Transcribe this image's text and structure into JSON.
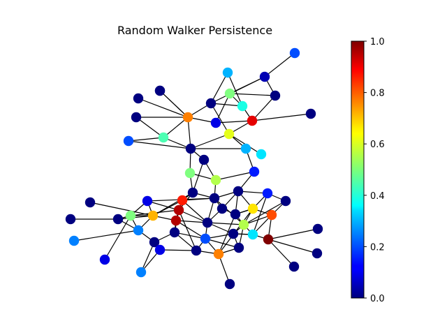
{
  "figure": {
    "title": "Random Walker Persistence"
  },
  "colorbar": {
    "colormap": "jet",
    "min": 0.0,
    "max": 1.0,
    "ticks": [
      {
        "value": 0.0,
        "label": "0.0"
      },
      {
        "value": 0.2,
        "label": "0.2"
      },
      {
        "value": 0.4,
        "label": "0.4"
      },
      {
        "value": 0.6,
        "label": "0.6"
      },
      {
        "value": 0.8,
        "label": "0.8"
      },
      {
        "value": 1.0,
        "label": "1.0"
      }
    ]
  },
  "graph": {
    "node_values": [
      0.2,
      0.3,
      0.05,
      0.0,
      0.5,
      0.4,
      0.0,
      0.0,
      0.75,
      0.0,
      0.1,
      0.9,
      0.6,
      0.0,
      0.0,
      0.0,
      0.45,
      0.0,
      0.3,
      0.2,
      0.5,
      0.55,
      0.15,
      0.35,
      0.0,
      0.0,
      0.0,
      0.1,
      0.85,
      0.0,
      0.0,
      0.0,
      0.0,
      0.15,
      0.65,
      0.0,
      0.5,
      0.7,
      0.95,
      0.95,
      0.25,
      0.0,
      0.0,
      0.8,
      0.0,
      0.0,
      0.55,
      0.35,
      0.0,
      0.0,
      0.2,
      1.0,
      0.1,
      0.0,
      0.0,
      0.25,
      0.1,
      0.0,
      0.75,
      0.0,
      0.0,
      0.0,
      0.25
    ]
  }
}
